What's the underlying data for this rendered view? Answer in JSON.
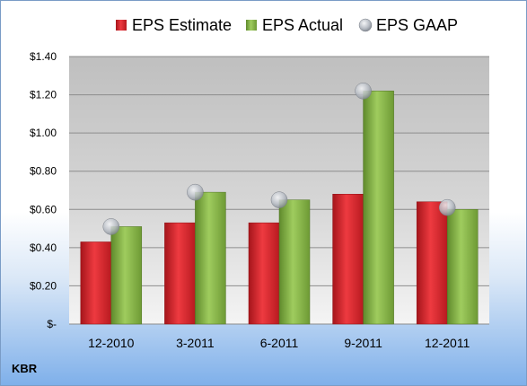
{
  "ticker": "KBR",
  "colors": {
    "estimate": "#e0262d",
    "actual": "#8bbb4c",
    "gaap": "#b9bec6",
    "plot_top": "#bdbdbd",
    "plot_bottom": "#f2f2f2"
  },
  "chart_data": {
    "type": "bar",
    "categories": [
      "12-2010",
      "3-2011",
      "6-2011",
      "9-2011",
      "12-2011"
    ],
    "series": [
      {
        "name": "EPS Estimate",
        "values": [
          0.43,
          0.53,
          0.53,
          0.68,
          0.64
        ]
      },
      {
        "name": "EPS Actual",
        "values": [
          0.51,
          0.69,
          0.65,
          1.22,
          0.6
        ]
      },
      {
        "name": "EPS GAAP",
        "values": [
          0.51,
          0.69,
          0.65,
          1.22,
          0.61
        ],
        "marker": "circle"
      }
    ],
    "ylim": [
      0,
      1.4
    ],
    "yticks": [
      0,
      0.2,
      0.4,
      0.6,
      0.8,
      1.0,
      1.2,
      1.4
    ],
    "ytick_labels": [
      "$-",
      "$0.20",
      "$0.40",
      "$0.60",
      "$0.80",
      "$1.00",
      "$1.20",
      "$1.40"
    ],
    "grid": true,
    "legend": "top"
  }
}
